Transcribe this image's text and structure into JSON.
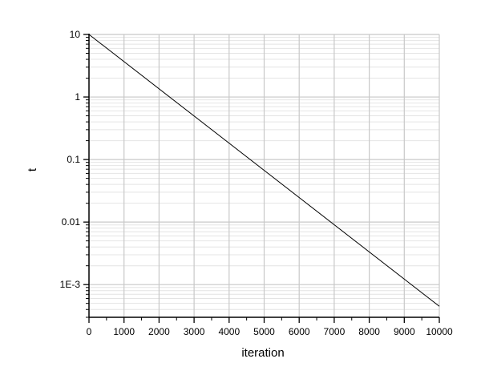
{
  "chart_data": {
    "type": "line",
    "xlabel": "iteration",
    "ylabel": "t",
    "xlim": [
      0,
      10000
    ],
    "ylim": [
      0.0003,
      10
    ],
    "yscale": "log",
    "grid": true,
    "x_ticks": [
      0,
      1000,
      2000,
      3000,
      4000,
      5000,
      6000,
      7000,
      8000,
      9000,
      10000
    ],
    "x_tick_labels": [
      "0",
      "1000",
      "2000",
      "3000",
      "4000",
      "5000",
      "6000",
      "7000",
      "8000",
      "9000",
      "10000"
    ],
    "y_ticks": [
      10,
      1,
      0.1,
      0.01,
      0.001
    ],
    "y_tick_labels": [
      "10",
      "1",
      "0.1",
      "0.01",
      "1E-3"
    ],
    "series": [
      {
        "color": "#000000",
        "x": [
          0,
          10000
        ],
        "y": [
          10,
          0.00045
        ]
      }
    ]
  }
}
